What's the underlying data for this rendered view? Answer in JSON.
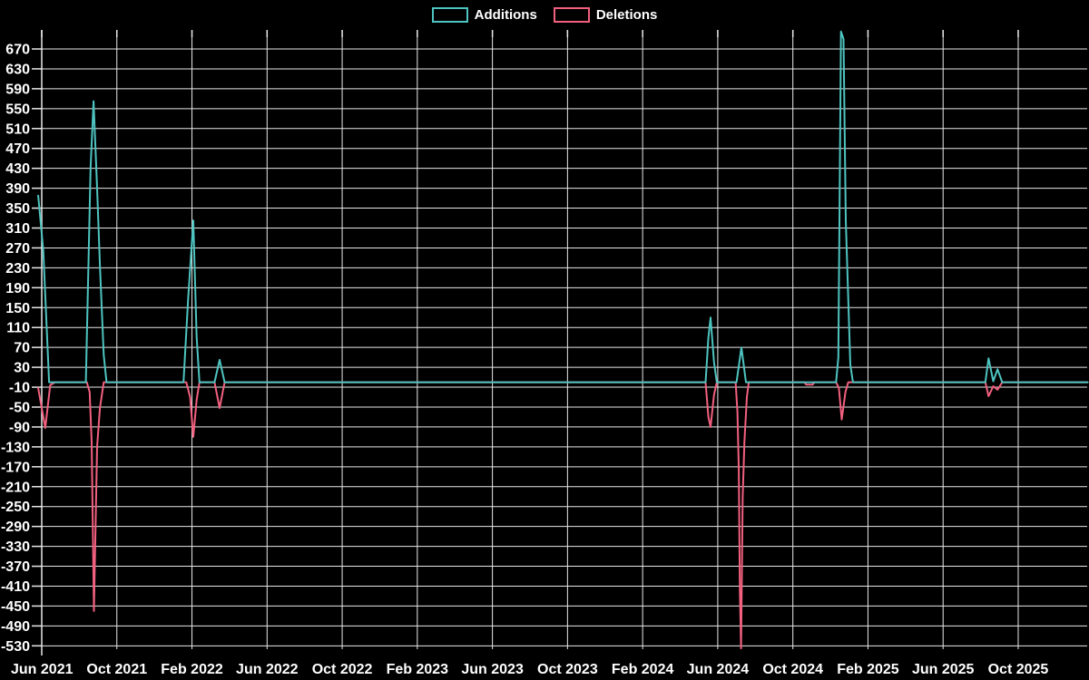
{
  "legend": {
    "items": [
      {
        "label": "Additions",
        "color": "#4ec4c0"
      },
      {
        "label": "Deletions",
        "color": "#f2607f"
      }
    ]
  },
  "chart_data": {
    "type": "line",
    "title": "",
    "xlabel": "",
    "ylabel": "",
    "background_color": "#000000",
    "grid_color": "#e8e8e8",
    "text_color": "#ffffff",
    "legend_position": "top-center",
    "grid": true,
    "ylim": [
      -537,
      708
    ],
    "y_axis": {
      "tick_values": [
        670,
        630,
        590,
        550,
        510,
        470,
        430,
        390,
        350,
        310,
        270,
        230,
        190,
        150,
        110,
        70,
        30,
        -10,
        -50,
        -90,
        -130,
        -170,
        -210,
        -250,
        -290,
        -330,
        -370,
        -410,
        -450,
        -490,
        -530
      ],
      "tick_labels": [
        "670",
        "630",
        "590",
        "550",
        "510",
        "470",
        "430",
        "390",
        "350",
        "310",
        "270",
        "230",
        "190",
        "150",
        "110",
        "70",
        "30",
        "-10",
        "-50",
        "-90",
        "-130",
        "-170",
        "-210",
        "-250",
        "-290",
        "-330",
        "-370",
        "-410",
        "-450",
        "-490",
        "-530"
      ]
    },
    "x_axis": {
      "unit": "months since Jun 2021",
      "tick_labels": [
        "Jun 2021",
        "Oct 2021",
        "Feb 2022",
        "Jun 2022",
        "Oct 2022",
        "Feb 2023",
        "Jun 2023",
        "Oct 2023",
        "Feb 2024",
        "Jun 2024",
        "Oct 2024",
        "Feb 2025",
        "Jun 2025",
        "Oct 2025"
      ],
      "tick_month_offsets": [
        0,
        4,
        8,
        12,
        16,
        20,
        24,
        28,
        32,
        36,
        40,
        44,
        48,
        52
      ]
    },
    "series": [
      {
        "name": "Additions",
        "color": "#4ec4c0",
        "points": [
          [
            -0.19,
            375
          ],
          [
            0.08,
            265
          ],
          [
            0.39,
            0
          ],
          [
            2.35,
            0
          ],
          [
            2.6,
            430
          ],
          [
            2.76,
            565
          ],
          [
            2.95,
            390
          ],
          [
            3.1,
            235
          ],
          [
            3.3,
            55
          ],
          [
            3.45,
            0
          ],
          [
            7.55,
            0
          ],
          [
            7.8,
            170
          ],
          [
            8.07,
            325
          ],
          [
            8.25,
            90
          ],
          [
            8.4,
            0
          ],
          [
            9.2,
            0
          ],
          [
            9.47,
            45
          ],
          [
            9.74,
            0
          ],
          [
            35.35,
            0
          ],
          [
            35.5,
            90
          ],
          [
            35.62,
            130
          ],
          [
            35.8,
            40
          ],
          [
            35.95,
            0
          ],
          [
            37.0,
            0
          ],
          [
            37.26,
            70
          ],
          [
            37.5,
            0
          ],
          [
            42.3,
            0
          ],
          [
            42.42,
            50
          ],
          [
            42.56,
            705
          ],
          [
            42.7,
            690
          ],
          [
            42.82,
            325
          ],
          [
            42.94,
            180
          ],
          [
            43.06,
            35
          ],
          [
            43.2,
            0
          ],
          [
            50.25,
            0
          ],
          [
            50.42,
            48
          ],
          [
            50.67,
            2
          ],
          [
            50.9,
            26
          ],
          [
            51.15,
            0
          ],
          [
            55.7,
            0
          ]
        ]
      },
      {
        "name": "Deletions",
        "color": "#f2607f",
        "points": [
          [
            -0.19,
            -12
          ],
          [
            0.19,
            -92
          ],
          [
            0.45,
            -6
          ],
          [
            0.7,
            0
          ],
          [
            2.4,
            0
          ],
          [
            2.55,
            -20
          ],
          [
            2.66,
            -120
          ],
          [
            2.78,
            -460
          ],
          [
            2.95,
            -130
          ],
          [
            3.1,
            -52
          ],
          [
            3.3,
            0
          ],
          [
            7.7,
            0
          ],
          [
            7.9,
            -30
          ],
          [
            8.07,
            -110
          ],
          [
            8.25,
            -35
          ],
          [
            8.4,
            0
          ],
          [
            9.2,
            0
          ],
          [
            9.47,
            -52
          ],
          [
            9.74,
            0
          ],
          [
            35.35,
            0
          ],
          [
            35.5,
            -70
          ],
          [
            35.62,
            -90
          ],
          [
            35.8,
            -25
          ],
          [
            35.95,
            0
          ],
          [
            36.95,
            0
          ],
          [
            37.05,
            -60
          ],
          [
            37.12,
            -175
          ],
          [
            37.18,
            -420
          ],
          [
            37.24,
            -535
          ],
          [
            37.33,
            -230
          ],
          [
            37.42,
            -120
          ],
          [
            37.55,
            -30
          ],
          [
            37.65,
            0
          ],
          [
            40.6,
            0
          ],
          [
            40.72,
            -5
          ],
          [
            41.05,
            -5
          ],
          [
            41.15,
            0
          ],
          [
            42.3,
            0
          ],
          [
            42.45,
            -12
          ],
          [
            42.6,
            -75
          ],
          [
            42.8,
            -20
          ],
          [
            42.95,
            0
          ],
          [
            50.25,
            0
          ],
          [
            50.42,
            -28
          ],
          [
            50.67,
            -8
          ],
          [
            50.9,
            -15
          ],
          [
            51.15,
            0
          ],
          [
            55.7,
            0
          ]
        ]
      }
    ]
  }
}
